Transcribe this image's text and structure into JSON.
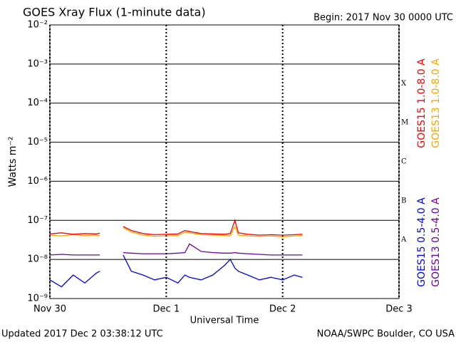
{
  "chart_data": {
    "type": "line",
    "title": "GOES Xray Flux (1-minute data)",
    "begin": "Begin:  2017 Nov 30 0000 UTC",
    "xlabel": "Universal Time",
    "ylabel": "Watts m⁻²",
    "updated": "Updated 2017 Dec  2 03:38:12 UTC",
    "credit": "NOAA/SWPC Boulder, CO USA",
    "class_labels": [
      "X",
      "M",
      "C",
      "B",
      "A"
    ],
    "ylog": true,
    "grid": true,
    "ylim": [
      1e-09,
      0.01
    ],
    "yticks": [
      {
        "value": 1e-09,
        "label": "10⁻⁹"
      },
      {
        "value": 1e-08,
        "label": "10⁻⁸"
      },
      {
        "value": 1e-07,
        "label": "10⁻⁷"
      },
      {
        "value": 1e-06,
        "label": "10⁻⁶"
      },
      {
        "value": 1e-05,
        "label": "10⁻⁵"
      },
      {
        "value": 0.0001,
        "label": "10⁻⁴"
      },
      {
        "value": 0.001,
        "label": "10⁻³"
      },
      {
        "value": 0.01,
        "label": "10⁻²"
      }
    ],
    "xlim": [
      0,
      3
    ],
    "xticks": [
      {
        "value": 0,
        "label": "Nov 30"
      },
      {
        "value": 1,
        "label": "Dec 1"
      },
      {
        "value": 2,
        "label": "Dec 2"
      },
      {
        "value": 3,
        "label": "Dec 3"
      }
    ],
    "x": [
      0,
      0.1,
      0.2,
      0.3,
      0.4,
      0.43,
      0.53,
      0.63,
      0.7,
      0.8,
      0.9,
      1.0,
      1.1,
      1.16,
      1.2,
      1.3,
      1.4,
      1.5,
      1.55,
      1.59,
      1.62,
      1.7,
      1.8,
      1.9,
      2.0,
      2.1,
      2.17
    ],
    "series": [
      {
        "name": "GOES15 1.0-8.0 A",
        "color": "#ff0000",
        "values": [
          4.5e-08,
          4.8e-08,
          4.4e-08,
          4.6e-08,
          4.5e-08,
          4.7e-08,
          null,
          7e-08,
          5.5e-08,
          4.6e-08,
          4.3e-08,
          4.4e-08,
          4.5e-08,
          5.5e-08,
          5.2e-08,
          4.6e-08,
          4.5e-08,
          4.4e-08,
          4.6e-08,
          1e-07,
          4.8e-08,
          4.4e-08,
          4.2e-08,
          4.3e-08,
          4.2e-08,
          4.3e-08,
          4.4e-08
        ]
      },
      {
        "name": "GOES13 1.0-8.0 A",
        "color": "#ffa500",
        "values": [
          4.2e-08,
          4e-08,
          4.3e-08,
          4.1e-08,
          4.2e-08,
          4e-08,
          null,
          6.5e-08,
          5e-08,
          4.2e-08,
          3.9e-08,
          4e-08,
          4.1e-08,
          5e-08,
          4.8e-08,
          4.3e-08,
          4.2e-08,
          4.1e-08,
          4e-08,
          7e-08,
          4.2e-08,
          4e-08,
          3.9e-08,
          4e-08,
          3.8e-08,
          4e-08,
          4.1e-08
        ]
      },
      {
        "name": "GOES15 0.5-4.0 A",
        "color": "#0000ff",
        "values": [
          3e-09,
          2e-09,
          4e-09,
          2.5e-09,
          4.5e-09,
          5e-09,
          null,
          1.3e-08,
          5e-09,
          4e-09,
          3e-09,
          3.5e-09,
          2.5e-09,
          4e-09,
          3.5e-09,
          3e-09,
          4e-09,
          7e-09,
          1e-08,
          6e-09,
          5e-09,
          4e-09,
          3e-09,
          3.5e-09,
          3e-09,
          4e-09,
          3.5e-09
        ]
      },
      {
        "name": "GOES13 0.5-4.0 A",
        "color": "#7000a0",
        "values": [
          1.3e-08,
          1.35e-08,
          1.3e-08,
          1.3e-08,
          1.3e-08,
          1.3e-08,
          null,
          1.5e-08,
          1.45e-08,
          1.4e-08,
          1.4e-08,
          1.4e-08,
          1.45e-08,
          1.5e-08,
          2.5e-08,
          1.6e-08,
          1.5e-08,
          1.45e-08,
          1.45e-08,
          1.5e-08,
          1.45e-08,
          1.4e-08,
          1.35e-08,
          1.3e-08,
          1.3e-08,
          1.3e-08,
          1.3e-08
        ]
      }
    ]
  }
}
